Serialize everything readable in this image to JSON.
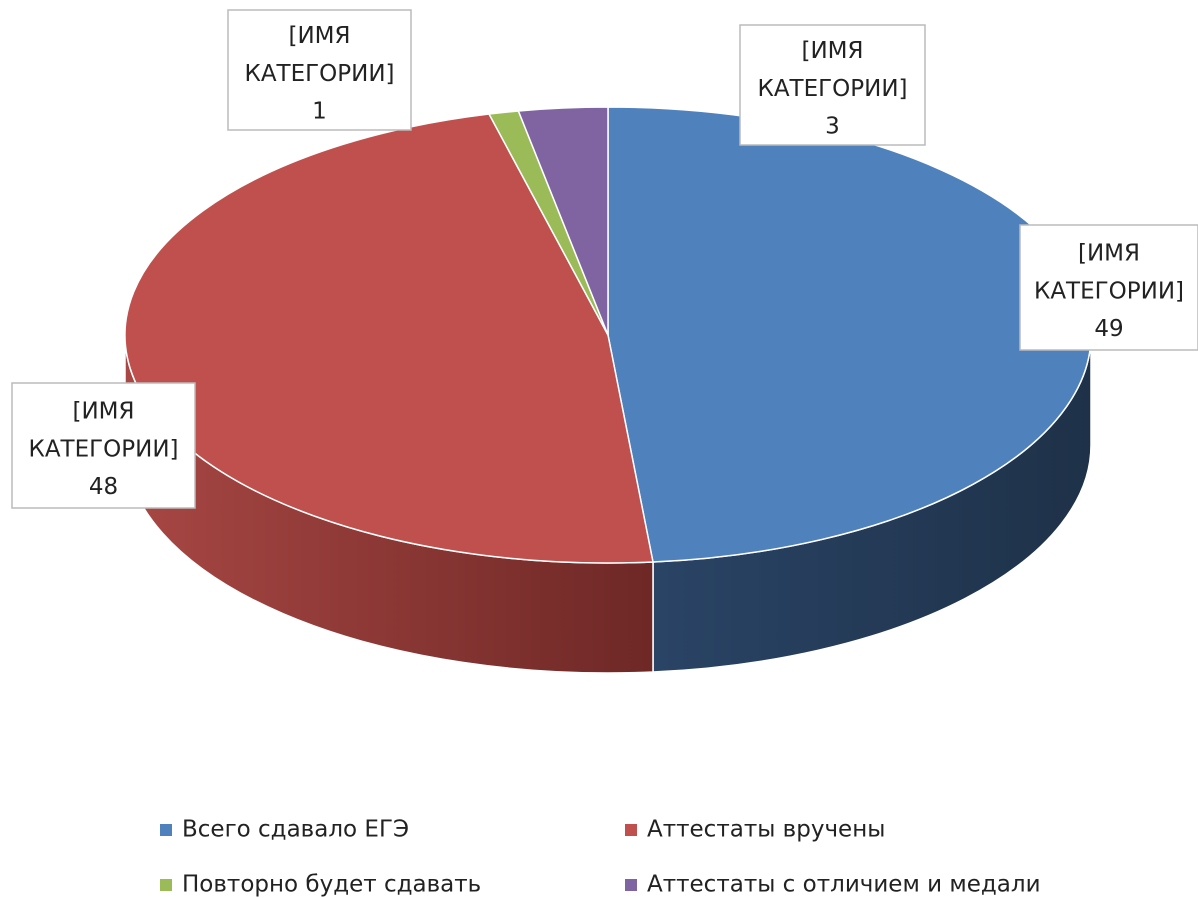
{
  "chart_data": {
    "type": "pie3d",
    "categories": [
      "Всего сдавало ЕГЭ",
      "Аттестаты вручены",
      "Повторно будет сдавать",
      "Аттестаты с отличием и медали"
    ],
    "values": [
      49,
      48,
      1,
      3
    ],
    "colors": [
      "#4f81bd",
      "#c0504d",
      "#9bbb59",
      "#8064a2"
    ],
    "data_label_name": "[ИМЯ КАТЕГОРИИ]",
    "legend": "bottom"
  }
}
